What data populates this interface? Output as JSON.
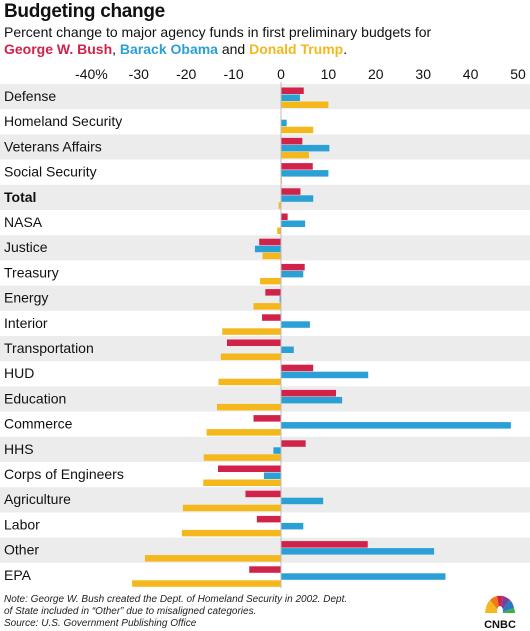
{
  "title": "Budgeting change",
  "subtitle": {
    "prefix": "Percent change to major agency funds in first preliminary budgets for",
    "bush": "George W. Bush",
    "sep1": ", ",
    "obama": "Barack Obama",
    "sep2": " and ",
    "trump": "Donald Trump",
    "end": "."
  },
  "colors": {
    "bush": "#d1224a",
    "obama": "#2aa0d4",
    "trump": "#f4b81c",
    "band": "#ececec"
  },
  "notes": {
    "line1": "Note: George W. Bush created the Dept. of Homeland Security in 2002. Dept.",
    "line2": "of State included in “Other” due to misaligned categories.",
    "source": "Source: U.S. Government Publishing Office"
  },
  "logo": {
    "text": "CNBC",
    "icon": "cnbc-peacock-logo"
  },
  "chart_data": {
    "type": "bar",
    "orientation": "horizontal",
    "xlim": [
      -40,
      50
    ],
    "tick_values": [
      -40,
      -30,
      -20,
      -10,
      0,
      10,
      20,
      30,
      40,
      50
    ],
    "tick_labels": [
      "-40%",
      "-30",
      "-20",
      "-10",
      "0",
      "10",
      "20",
      "30",
      "40",
      "50"
    ],
    "legend": "in subtitle",
    "grid": "alternating row bands",
    "categories": [
      "Defense",
      "Homeland Security",
      "Veterans Affairs",
      "Social Security",
      "Total",
      "NASA",
      "Justice",
      "Treasury",
      "Energy",
      "Interior",
      "Transportation",
      "HUD",
      "Education",
      "Commerce",
      "HHS",
      "Corps of Engineers",
      "Agriculture",
      "Labor",
      "Other",
      "EPA"
    ],
    "bold_categories": [
      "Total"
    ],
    "series": [
      {
        "name": "George W. Bush",
        "color": "#d1224a",
        "values": [
          4.8,
          null,
          4.5,
          6.7,
          4.1,
          1.4,
          -4.6,
          5.0,
          -3.3,
          -4.0,
          -11.4,
          6.8,
          11.6,
          -5.8,
          5.2,
          -13.3,
          -7.5,
          -5.1,
          18.3,
          -6.7
        ]
      },
      {
        "name": "Barack Obama",
        "color": "#2aa0d4",
        "values": [
          4.0,
          1.2,
          10.2,
          10.0,
          6.8,
          5.1,
          -5.5,
          4.7,
          -0.3,
          6.1,
          2.7,
          18.4,
          12.9,
          48.5,
          -1.6,
          -3.6,
          8.9,
          4.7,
          32.3,
          34.7
        ]
      },
      {
        "name": "Donald Trump",
        "color": "#f4b81c",
        "values": [
          10.0,
          6.8,
          5.9,
          0.2,
          -0.5,
          -0.8,
          -3.9,
          -4.4,
          -5.8,
          -12.4,
          -12.7,
          -13.2,
          -13.5,
          -15.7,
          -16.3,
          -16.4,
          -20.7,
          -20.9,
          -28.7,
          -31.4
        ]
      }
    ]
  }
}
